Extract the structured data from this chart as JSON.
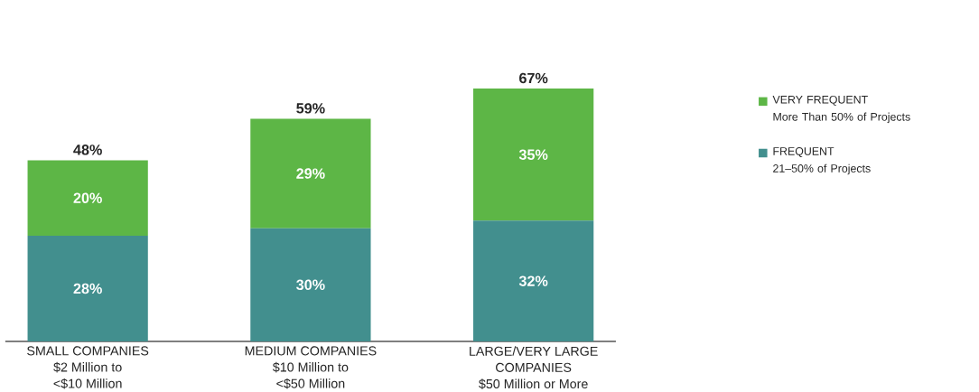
{
  "chart_data": {
    "type": "bar",
    "stacked": true,
    "categories": [
      "SMALL COMPANIES\n$2 Million to\n<$10 Million",
      "MEDIUM COMPANIES\n$10 Million to\n<$50 Million",
      "LARGE/VERY LARGE\nCOMPANIES\n$50 Million or More"
    ],
    "series": [
      {
        "name": "FREQUENT\n21–50% of Projects",
        "color": "#428f8e",
        "values": [
          28,
          30,
          32
        ],
        "value_labels": [
          "28%",
          "30%",
          "32%"
        ]
      },
      {
        "name": "VERY FREQUENT\nMore Than 50% of Projects",
        "color": "#5db646",
        "values": [
          20,
          29,
          35
        ],
        "value_labels": [
          "20%",
          "29%",
          "35%"
        ]
      }
    ],
    "totals": [
      "48%",
      "59%",
      "67%"
    ],
    "legend": "right"
  }
}
